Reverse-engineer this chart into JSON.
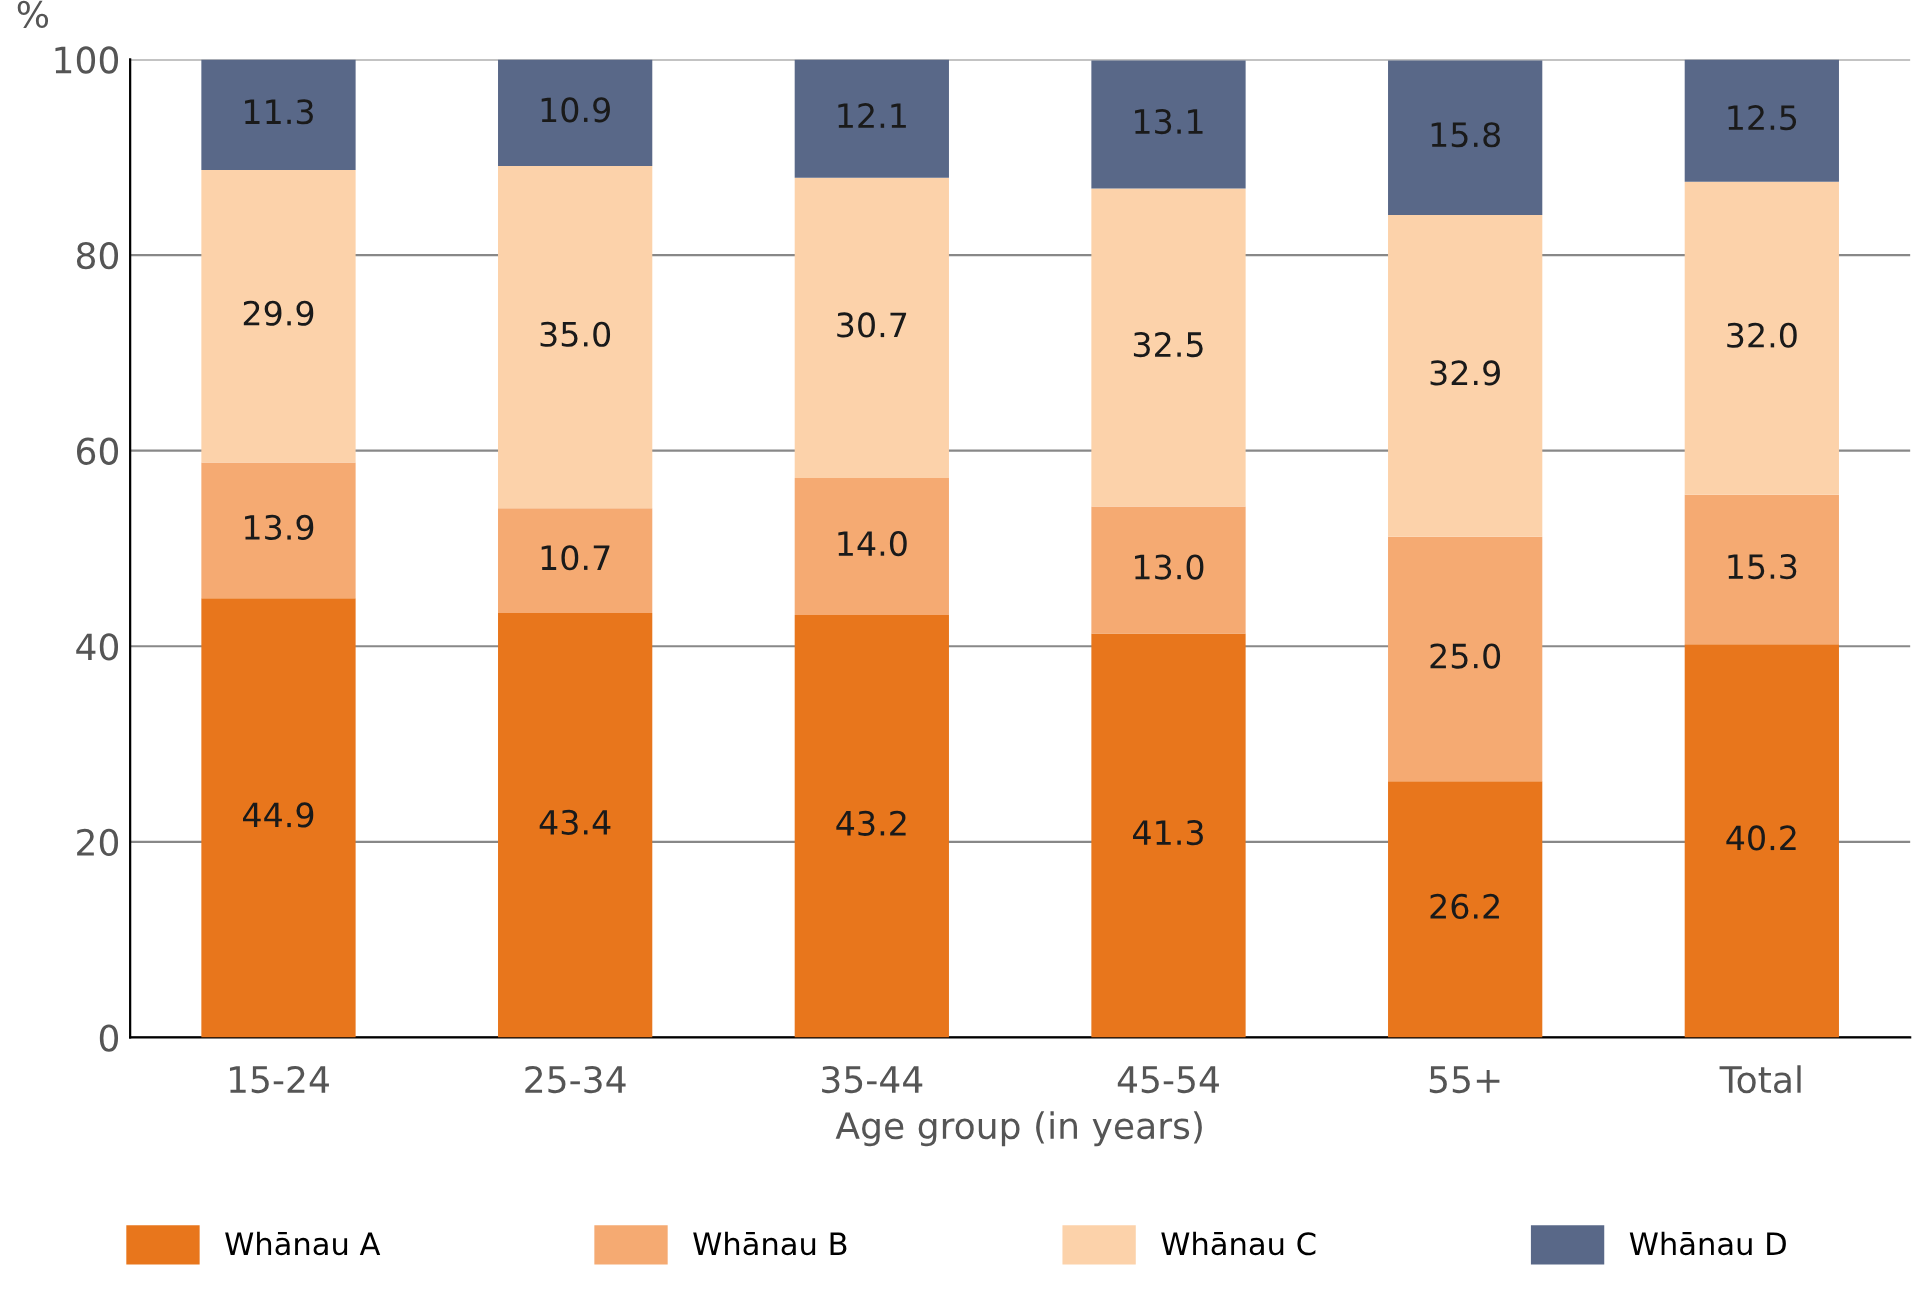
{
  "chart_data": {
    "type": "bar",
    "stacked": true,
    "xlabel": "Age group (in years)",
    "ylabel": "%",
    "categories": [
      "15-24",
      "25-34",
      "35-44",
      "45-54",
      "55+",
      "Total"
    ],
    "series": [
      {
        "name": "Whānau A",
        "color": "#e8761c",
        "values": [
          44.9,
          43.4,
          43.2,
          41.3,
          26.2,
          40.2
        ],
        "value_labels": [
          "44.9",
          "43.4",
          "43.2",
          "41.3",
          "26.2",
          "40.2"
        ]
      },
      {
        "name": "Whānau B",
        "color": "#f5aa72",
        "values": [
          13.9,
          10.7,
          14.0,
          13.0,
          25.0,
          15.3
        ],
        "value_labels": [
          "13.9",
          "10.7",
          "14.0",
          "13.0",
          "25.0",
          "15.3"
        ]
      },
      {
        "name": "Whānau C",
        "color": "#fcd2aa",
        "values": [
          29.9,
          35.0,
          30.7,
          32.5,
          32.9,
          32.0
        ],
        "value_labels": [
          "29.9",
          "35.0",
          "30.7",
          "32.5",
          "32.9",
          "32.0"
        ]
      },
      {
        "name": "Whānau D",
        "color": "#596888",
        "values": [
          11.3,
          10.9,
          12.1,
          13.1,
          15.8,
          12.5
        ],
        "value_labels": [
          "11.3",
          "10.9",
          "12.1",
          "13.1",
          "15.8",
          "12.5"
        ]
      }
    ],
    "ylim": [
      0,
      100
    ],
    "yticks": [
      0,
      20,
      40,
      60,
      80,
      100
    ],
    "grid": "y",
    "legend": "bottom"
  }
}
